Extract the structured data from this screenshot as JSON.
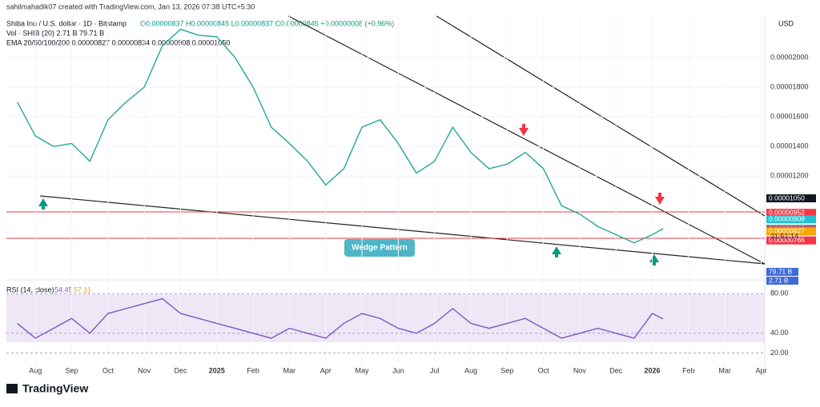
{
  "watermark": "sahilmahadik07 created with TradingView.com, Jan 13, 2026 07:38 UTC+5:30",
  "brand": "TradingView",
  "chart_data": [
    {
      "type": "line",
      "title": "Shiba Inu / U.S. dollar · 1D · Bitstamp",
      "ohlc": "O0.00000837 H0.00000845 L0.00000837 C0.00000845 +0.00000008 (+0.96%)",
      "legend_lines": [
        "Vol · SHIB (20)  2.71 B  79.71 B",
        "EMA 20/50/100/200  0.00000827  0.00000834  0.00000908  0.00001050"
      ],
      "currency": "USD",
      "annotation": "Wedge Pattern",
      "x": [
        -0.5,
        0,
        0.5,
        1,
        1.5,
        2,
        2.5,
        3,
        3.5,
        4,
        4.5,
        5,
        5.5,
        6,
        6.5,
        7,
        7.5,
        8,
        8.5,
        9,
        9.5,
        10,
        10.5,
        11,
        11.5,
        12,
        12.5,
        13,
        13.5,
        14,
        14.5,
        15,
        15.5,
        16,
        16.5,
        17,
        17.3
      ],
      "series": [
        {
          "name": "SHIB/USD",
          "color": "#26a69a",
          "values": [
            1.7e-05,
            1.47e-05,
            1.4e-05,
            1.42e-05,
            1.3e-05,
            1.58e-05,
            1.7e-05,
            1.8e-05,
            2.08e-05,
            2.19e-05,
            2.15e-05,
            2.14e-05,
            2e-05,
            1.8e-05,
            1.53e-05,
            1.42e-05,
            1.3e-05,
            1.14e-05,
            1.25e-05,
            1.53e-05,
            1.58e-05,
            1.42e-05,
            1.22e-05,
            1.3e-05,
            1.53e-05,
            1.36e-05,
            1.25e-05,
            1.28e-05,
            1.36e-05,
            1.25e-05,
            1e-05,
            9.44e-06,
            8.6e-06,
            8.05e-06,
            7.5e-06,
            8.05e-06,
            8.45e-06
          ]
        }
      ],
      "xlim": [
        -0.8,
        20.1
      ],
      "xticks": [
        {
          "value": 0,
          "label": "Aug"
        },
        {
          "value": 1,
          "label": "Sep"
        },
        {
          "value": 2,
          "label": "Oct"
        },
        {
          "value": 3,
          "label": "Nov"
        },
        {
          "value": 4,
          "label": "Dec"
        },
        {
          "value": 5,
          "label": "2025"
        },
        {
          "value": 6,
          "label": "Feb"
        },
        {
          "value": 7,
          "label": "Mar"
        },
        {
          "value": 8,
          "label": "Apr"
        },
        {
          "value": 9,
          "label": "May"
        },
        {
          "value": 10,
          "label": "Jun"
        },
        {
          "value": 11,
          "label": "Jul"
        },
        {
          "value": 12,
          "label": "Aug"
        },
        {
          "value": 13,
          "label": "Sep"
        },
        {
          "value": 14,
          "label": "Oct"
        },
        {
          "value": 15,
          "label": "Nov"
        },
        {
          "value": 16,
          "label": "Dec"
        },
        {
          "value": 17,
          "label": "2026"
        },
        {
          "value": 18,
          "label": "Feb"
        },
        {
          "value": 19,
          "label": "Mar"
        },
        {
          "value": 20,
          "label": "Apr"
        }
      ],
      "ylim": [
        5e-06,
        2.28e-05
      ],
      "yticks": [
        {
          "value": 1.2e-05,
          "label": "0.00001200"
        },
        {
          "value": 1.4e-05,
          "label": "0.00001400"
        },
        {
          "value": 1.6e-05,
          "label": "0.00001600"
        },
        {
          "value": 1.8e-05,
          "label": "0.00001800"
        },
        {
          "value": 2e-05,
          "label": "0.00002000"
        }
      ],
      "price_tags": [
        {
          "value": 1.05e-05,
          "label": "0.00001050",
          "color": "#131722"
        },
        {
          "value": 9.52e-06,
          "label": "0.00000952",
          "color": "#f23645"
        },
        {
          "value": 9.08e-06,
          "label": "0.00000908",
          "color": "#22c1d6"
        },
        {
          "value": 8.45e-06,
          "label": "0.00000845",
          "color": "#26a69a"
        },
        {
          "value": 8.34e-06,
          "label": "0.00000834",
          "color": "#f23645"
        },
        {
          "value": 8.27e-06,
          "label": "0.00000827",
          "color": "#f7a600"
        },
        {
          "value": 7.66e-06,
          "label": "0.00000766",
          "color": "#f23645"
        }
      ],
      "countdown": "21:51:14",
      "volume_tags": [
        "79.71 B",
        "2.71 B"
      ]
    },
    {
      "type": "line",
      "title": "RSI (14, close)",
      "header_values": [
        "54.45",
        "57.11"
      ],
      "x": [
        -0.5,
        0,
        0.5,
        1,
        1.5,
        2,
        2.5,
        3,
        3.5,
        4,
        4.5,
        5,
        5.5,
        6,
        6.5,
        7,
        7.5,
        8,
        8.5,
        9,
        9.5,
        10,
        10.5,
        11,
        11.5,
        12,
        12.5,
        13,
        13.5,
        14,
        14.5,
        15,
        15.5,
        16,
        16.5,
        17,
        17.3
      ],
      "series": [
        {
          "name": "RSI",
          "color": "#7e57c2",
          "values": [
            50,
            35,
            45,
            55,
            40,
            60,
            65,
            70,
            75,
            60,
            55,
            50,
            45,
            40,
            35,
            45,
            40,
            35,
            50,
            60,
            55,
            45,
            40,
            50,
            65,
            50,
            45,
            50,
            55,
            45,
            35,
            40,
            45,
            40,
            35,
            60,
            54.45
          ]
        }
      ],
      "xlim": [
        -0.8,
        20.1
      ],
      "ylim": [
        5,
        90
      ],
      "yticks": [
        {
          "value": 20,
          "label": "20.00"
        },
        {
          "value": 40,
          "label": "40.00"
        },
        {
          "value": 80,
          "label": "80.00"
        }
      ]
    }
  ]
}
